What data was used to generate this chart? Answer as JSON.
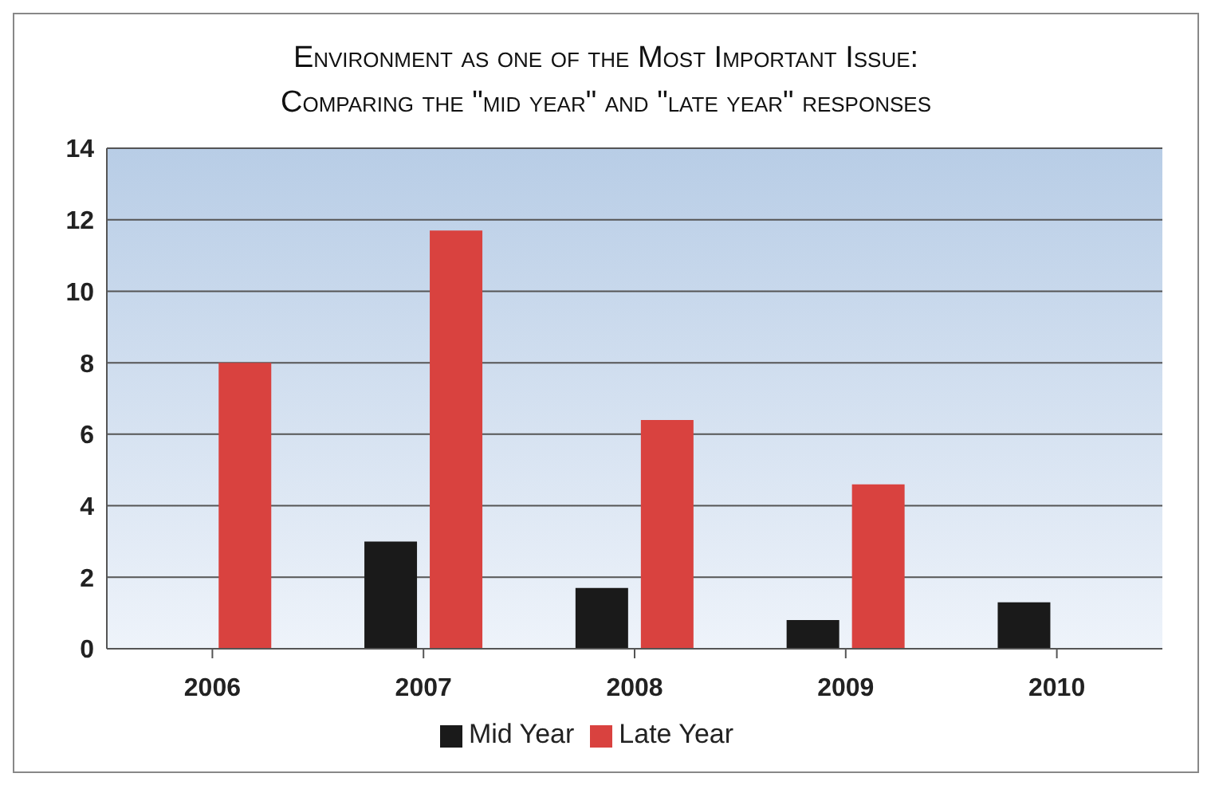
{
  "chart_data": {
    "type": "bar",
    "title": "Environment as one of the Most Important Issue:",
    "subtitle": "Comparing the \"mid year\" and \"late year\" responses",
    "categories": [
      "2006",
      "2007",
      "2008",
      "2009",
      "2010"
    ],
    "series": [
      {
        "name": "Mid Year",
        "color": "#1a1a1a",
        "values": [
          null,
          3.0,
          1.7,
          0.8,
          1.3
        ]
      },
      {
        "name": "Late Year",
        "color": "#d9423f",
        "values": [
          8.0,
          11.7,
          6.4,
          4.6,
          null
        ]
      }
    ],
    "ylim": [
      0,
      14
    ],
    "yticks": [
      0,
      2,
      4,
      6,
      8,
      10,
      12,
      14
    ],
    "grid": "y",
    "legend": "bottom"
  }
}
